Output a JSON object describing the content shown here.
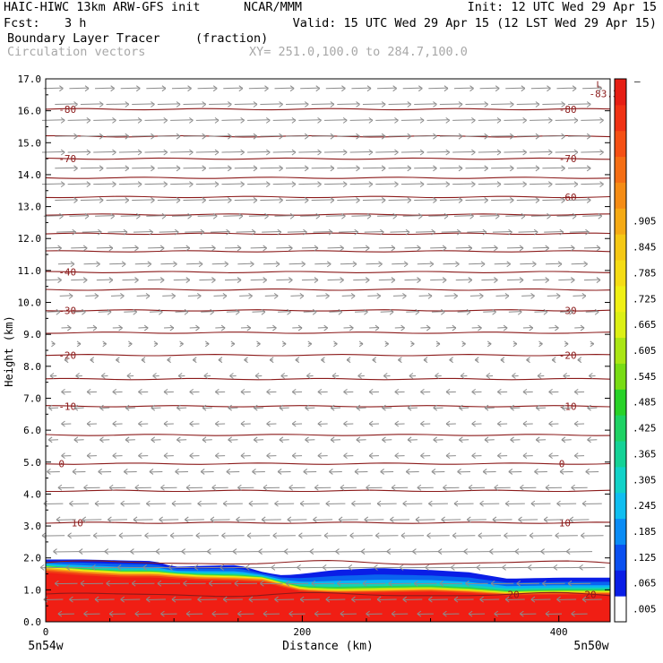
{
  "header": {
    "line1_left": "HAIC-HIWC 13km ARW-GFS init",
    "line1_org": "NCAR/MMM",
    "line1_right": "Init: 12 UTC Wed 29 Apr 15",
    "fcst_label": "Fcst:",
    "fcst_value": "3 h",
    "valid": "Valid: 15 UTC Wed 29 Apr 15 (12 LST Wed 29 Apr 15)",
    "field_name": "Boundary Layer Tracer",
    "field_units": "(fraction)",
    "vectors_label": "Circulation vectors",
    "xy_label": "XY= 251.0,100.0 to 284.7,100.0"
  },
  "chart_data": {
    "type": "heatmap",
    "xlabel": "Distance (km)",
    "ylabel": "Height (km)",
    "xlim": [
      0,
      440
    ],
    "ylim": [
      0,
      17
    ],
    "x_ticks": [
      {
        "value": 0,
        "label": "0"
      },
      {
        "value": 200,
        "label": "200"
      },
      {
        "value": 400,
        "label": "400"
      }
    ],
    "y_ticks": [
      {
        "value": 0,
        "label": "0.0"
      },
      {
        "value": 1,
        "label": "1.0"
      },
      {
        "value": 2,
        "label": "2.0"
      },
      {
        "value": 3,
        "label": "3.0"
      },
      {
        "value": 4,
        "label": "4.0"
      },
      {
        "value": 5,
        "label": "5.0"
      },
      {
        "value": 6,
        "label": "6.0"
      },
      {
        "value": 7,
        "label": "7.0"
      },
      {
        "value": 8,
        "label": "8.0"
      },
      {
        "value": 9,
        "label": "9.0"
      },
      {
        "value": 10,
        "label": "10.0"
      },
      {
        "value": 11,
        "label": "11.0"
      },
      {
        "value": 12,
        "label": "12.0"
      },
      {
        "value": 13,
        "label": "13.0"
      },
      {
        "value": 14,
        "label": "14.0"
      },
      {
        "value": 15,
        "label": "15.0"
      },
      {
        "value": 16,
        "label": "16.0"
      },
      {
        "value": 17,
        "label": "17.0"
      }
    ],
    "endpoint_left": "5n54w",
    "endpoint_right": "5n50w",
    "colorbar": {
      "labels": [
        ".005",
        ".065",
        ".125",
        ".185",
        ".245",
        ".305",
        ".365",
        ".425",
        ".485",
        ".545",
        ".605",
        ".665",
        ".725",
        ".785",
        ".845",
        ".905"
      ],
      "top_label": "–",
      "colors": [
        "#ffffff",
        "#0a1ee6",
        "#0a50f0",
        "#0a8cf5",
        "#10bef0",
        "#12d2c8",
        "#14d296",
        "#1ed264",
        "#28d228",
        "#78dc14",
        "#aae614",
        "#dcf014",
        "#f0f014",
        "#f5dc14",
        "#f5c814",
        "#f5aa14",
        "#f58c14",
        "#f56e14",
        "#f55014",
        "#f03214",
        "#e61e14"
      ]
    },
    "tracer_top_km": [
      {
        "x": 0,
        "top": 1.95,
        "mid": 1.72
      },
      {
        "x": 30,
        "top": 1.95,
        "mid": 1.62
      },
      {
        "x": 60,
        "top": 1.92,
        "mid": 1.55
      },
      {
        "x": 85,
        "top": 1.9,
        "mid": 1.55
      },
      {
        "x": 100,
        "top": 1.72,
        "mid": 1.5
      },
      {
        "x": 120,
        "top": 1.75,
        "mid": 1.45
      },
      {
        "x": 150,
        "top": 1.78,
        "mid": 1.42
      },
      {
        "x": 170,
        "top": 1.55,
        "mid": 1.38
      },
      {
        "x": 185,
        "top": 1.45,
        "mid": 1.2
      },
      {
        "x": 200,
        "top": 1.5,
        "mid": 1.05
      },
      {
        "x": 225,
        "top": 1.62,
        "mid": 1.0
      },
      {
        "x": 260,
        "top": 1.68,
        "mid": 1.02
      },
      {
        "x": 300,
        "top": 1.62,
        "mid": 1.05
      },
      {
        "x": 330,
        "top": 1.55,
        "mid": 1.0
      },
      {
        "x": 360,
        "top": 1.35,
        "mid": 0.92
      },
      {
        "x": 400,
        "top": 1.38,
        "mid": 0.95
      },
      {
        "x": 440,
        "top": 1.38,
        "mid": 0.95
      }
    ],
    "temperature_contours": [
      {
        "y": 16.05,
        "labels": [
          {
            "x": 10,
            "text": "-80"
          },
          {
            "x": 400,
            "text": "-80"
          }
        ]
      },
      {
        "y": 15.2,
        "labels": []
      },
      {
        "y": 14.5,
        "labels": [
          {
            "x": 10,
            "text": "-70"
          },
          {
            "x": 400,
            "text": "-70"
          }
        ]
      },
      {
        "y": 13.9,
        "labels": []
      },
      {
        "y": 13.3,
        "labels": [
          {
            "x": 400,
            "text": "-60"
          }
        ]
      },
      {
        "y": 12.75,
        "labels": []
      },
      {
        "y": 12.15,
        "labels": []
      },
      {
        "y": 11.6,
        "labels": []
      },
      {
        "y": 10.95,
        "labels": [
          {
            "x": 10,
            "text": "-40"
          }
        ]
      },
      {
        "y": 10.4,
        "labels": []
      },
      {
        "y": 9.75,
        "labels": [
          {
            "x": 10,
            "text": "-30"
          },
          {
            "x": 400,
            "text": "-30"
          }
        ]
      },
      {
        "y": 9.05,
        "labels": []
      },
      {
        "y": 8.35,
        "labels": [
          {
            "x": 10,
            "text": "-20"
          },
          {
            "x": 400,
            "text": "-20"
          }
        ]
      },
      {
        "y": 7.6,
        "labels": []
      },
      {
        "y": 6.75,
        "labels": [
          {
            "x": 10,
            "text": "-10"
          },
          {
            "x": 400,
            "text": "-10"
          }
        ]
      },
      {
        "y": 5.85,
        "labels": []
      },
      {
        "y": 4.95,
        "labels": [
          {
            "x": 10,
            "text": "0"
          },
          {
            "x": 400,
            "text": "0"
          }
        ]
      },
      {
        "y": 4.1,
        "labels": []
      },
      {
        "y": 3.1,
        "labels": [
          {
            "x": 20,
            "text": "10"
          },
          {
            "x": 400,
            "text": "10"
          }
        ]
      },
      {
        "y": 1.85,
        "labels": []
      },
      {
        "y": 0.85,
        "labels": [
          {
            "x": 360,
            "text": "20"
          },
          {
            "x": 420,
            "text": "20"
          }
        ]
      }
    ],
    "low_marker": {
      "x": 418,
      "y": 16.85,
      "symbol": "L",
      "value": "-83.32"
    },
    "vector_rows_km": [
      16.7,
      16.2,
      15.7,
      15.2,
      14.7,
      14.2,
      13.7,
      13.2,
      12.7,
      12.2,
      11.7,
      11.2,
      10.7,
      10.2,
      9.7,
      9.2,
      8.7,
      8.2,
      7.7,
      7.2,
      6.7,
      6.2,
      5.7,
      5.2,
      4.7,
      4.2,
      3.7,
      3.2,
      2.7,
      2.2,
      1.7,
      1.2,
      0.7,
      0.25
    ],
    "vector_u_by_row": [
      6,
      7,
      7,
      7,
      7,
      7,
      7,
      7,
      6,
      6,
      5,
      5,
      5,
      4,
      4,
      3,
      1,
      -1,
      -2,
      -3,
      -3,
      -3,
      -3,
      -3,
      -4,
      -5,
      -6,
      -6,
      -7,
      -8,
      -8,
      -7,
      -6,
      -5
    ]
  }
}
